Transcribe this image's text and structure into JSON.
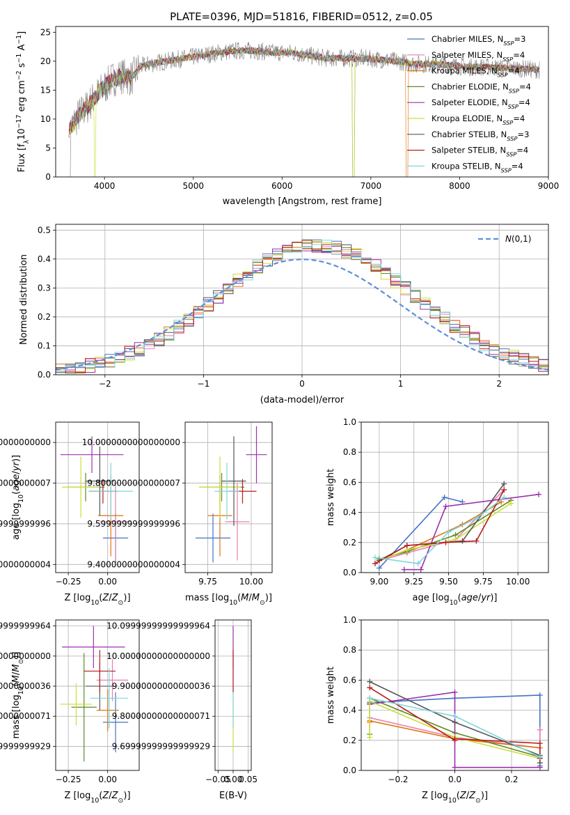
{
  "figure": {
    "title": "PLATE=0396, MJD=51816, FIBERID=0512, z=0.05"
  },
  "legend_entries": [
    {
      "label": "Chabrier MILES, N",
      "sub": "SSP",
      "tail": "=3",
      "color": "#4472c4"
    },
    {
      "label": "Salpeter MILES, N",
      "sub": "SSP",
      "tail": "=4",
      "color": "#e77fae"
    },
    {
      "label": "Kroupa MILES, N",
      "sub": "SSP",
      "tail": "=4",
      "color": "#e0730f"
    },
    {
      "label": "Chabrier ELODIE, N",
      "sub": "SSP",
      "tail": "=4",
      "color": "#5a8a22"
    },
    {
      "label": "Salpeter ELODIE, N",
      "sub": "SSP",
      "tail": "=4",
      "color": "#9c2fae"
    },
    {
      "label": "Kroupa ELODIE, N",
      "sub": "SSP",
      "tail": "=4",
      "color": "#cddc39"
    },
    {
      "label": "Chabrier STELIB, N",
      "sub": "SSP",
      "tail": "=3",
      "color": "#555555"
    },
    {
      "label": "Salpeter STELIB, N",
      "sub": "SSP",
      "tail": "=4",
      "color": "#b71c1c"
    },
    {
      "label": "Kroupa STELIB, N",
      "sub": "SSP",
      "tail": "=4",
      "color": "#7ed6dc"
    }
  ],
  "chart_data": [
    {
      "id": "spectrum",
      "type": "line",
      "title": "PLATE=0396, MJD=51816, FIBERID=0512, z=0.05",
      "xlabel": "wavelength [Angstrom, rest frame]",
      "ylabel": "Flux [f_λ 10^-17 erg cm^-2 s^-1 A^-1]",
      "xlim": [
        3450,
        9000
      ],
      "ylim": [
        0,
        26
      ],
      "xticks": [
        4000,
        5000,
        6000,
        7000,
        8000,
        9000
      ],
      "yticks": [
        0,
        5,
        10,
        15,
        20,
        25
      ],
      "grid": false,
      "legend": "top-right",
      "continuum": {
        "x": [
          3600,
          3700,
          3800,
          3900,
          4000,
          4100,
          4200,
          4300,
          4400,
          4500,
          4700,
          4900,
          5100,
          5300,
          5500,
          5700,
          5900,
          6100,
          6300,
          6500,
          6700,
          6900,
          7100,
          7300,
          7500,
          7700,
          7900,
          8100,
          8300,
          8500,
          8700,
          8900
        ],
        "y": [
          8,
          10.5,
          12,
          14,
          15.5,
          17,
          17.5,
          17,
          19,
          19.5,
          20,
          20.5,
          21,
          21.5,
          21.8,
          21.8,
          21.5,
          21.5,
          21,
          20.5,
          20.5,
          20.5,
          20.3,
          20,
          19.5,
          19.5,
          19.3,
          19,
          19,
          18.8,
          18.7,
          18.5
        ]
      }
    },
    {
      "id": "residuals",
      "type": "line",
      "xlabel": "(data-model)/error",
      "ylabel": "Normed distribution",
      "xlim": [
        -2.5,
        2.5
      ],
      "ylim": [
        0,
        0.52
      ],
      "xticks": [
        -2,
        -1,
        0,
        1,
        2
      ],
      "yticks": [
        0.0,
        0.1,
        0.2,
        0.3,
        0.4,
        0.5
      ],
      "grid": true,
      "legend": "top-right",
      "gaussian_label": "N(0,1)",
      "gaussian_color": "#5b8fd9"
    },
    {
      "id": "age-vs-Z",
      "type": "scatter",
      "xlabel": "Z [log10(Z/Z⊙)]",
      "ylabel": "age [log10(age/yr)]",
      "xlim": [
        -0.33,
        0.2
      ],
      "ylim": [
        9.36,
        10.1
      ],
      "xticks": [
        -0.25,
        0.0
      ],
      "yticks": [
        9.4,
        9.6,
        9.8,
        10.0
      ],
      "grid": true,
      "points": [
        {
          "x": 0.05,
          "y": 9.53,
          "xerr": 0.08,
          "yerr": 0.12,
          "color": "#4472c4"
        },
        {
          "x": 0.05,
          "y": 9.61,
          "xerr": 0.1,
          "yerr": 0.19,
          "color": "#e77fae"
        },
        {
          "x": 0.02,
          "y": 9.64,
          "xerr": 0.08,
          "yerr": 0.2,
          "color": "#e0730f"
        },
        {
          "x": -0.14,
          "y": 9.78,
          "xerr": 0.12,
          "yerr": 0.07,
          "color": "#5a8a22"
        },
        {
          "x": -0.1,
          "y": 9.94,
          "xerr": 0.2,
          "yerr": 0.09,
          "color": "#9c2fae"
        },
        {
          "x": -0.17,
          "y": 9.78,
          "xerr": 0.12,
          "yerr": 0.15,
          "color": "#cddc39"
        },
        {
          "x": -0.05,
          "y": 9.81,
          "xerr": 0.09,
          "yerr": 0.17,
          "color": "#555555"
        },
        {
          "x": -0.03,
          "y": 9.76,
          "xerr": 0.09,
          "yerr": 0.06,
          "color": "#b71c1c"
        },
        {
          "x": 0.02,
          "y": 9.76,
          "xerr": 0.14,
          "yerr": 0.14,
          "color": "#7ed6dc"
        }
      ]
    },
    {
      "id": "age-vs-mass",
      "type": "scatter",
      "xlabel": "mass [log10(M/M⊙)]",
      "ylabel": "",
      "xlim": [
        9.62,
        10.12
      ],
      "ylim": [
        9.36,
        10.1
      ],
      "xticks": [
        9.75,
        10.0
      ],
      "yticks": [
        9.4,
        9.6,
        9.8,
        10.0
      ],
      "grid": true,
      "points": [
        {
          "x": 9.78,
          "y": 9.53,
          "xerr": 0.1,
          "yerr": 0.12,
          "color": "#4472c4"
        },
        {
          "x": 9.92,
          "y": 9.61,
          "xerr": 0.07,
          "yerr": 0.19,
          "color": "#e77fae"
        },
        {
          "x": 9.82,
          "y": 9.64,
          "xerr": 0.07,
          "yerr": 0.2,
          "color": "#e0730f"
        },
        {
          "x": 9.83,
          "y": 9.78,
          "xerr": 0.13,
          "yerr": 0.07,
          "color": "#5a8a22"
        },
        {
          "x": 10.03,
          "y": 9.94,
          "xerr": 0.06,
          "yerr": 0.14,
          "color": "#9c2fae"
        },
        {
          "x": 9.82,
          "y": 9.78,
          "xerr": 0.12,
          "yerr": 0.15,
          "color": "#cddc39"
        },
        {
          "x": 9.9,
          "y": 9.81,
          "xerr": 0.07,
          "yerr": 0.22,
          "color": "#555555"
        },
        {
          "x": 9.95,
          "y": 9.76,
          "xerr": 0.08,
          "yerr": 0.06,
          "color": "#b71c1c"
        },
        {
          "x": 9.86,
          "y": 9.76,
          "xerr": 0.07,
          "yerr": 0.14,
          "color": "#7ed6dc"
        }
      ]
    },
    {
      "id": "weight-vs-age",
      "type": "line",
      "xlabel": "age [log10(age/yr)]",
      "ylabel": "mass weight",
      "xlim": [
        8.87,
        10.22
      ],
      "ylim": [
        0,
        1.0
      ],
      "xticks": [
        9.0,
        9.25,
        9.5,
        9.75,
        10.0
      ],
      "yticks": [
        0.0,
        0.2,
        0.4,
        0.6,
        0.8,
        1.0
      ],
      "grid": true,
      "series": [
        {
          "color": "#4472c4",
          "x": [
            9.0,
            9.47,
            9.6
          ],
          "y": [
            0.03,
            0.5,
            0.47
          ]
        },
        {
          "color": "#e77fae",
          "x": [
            9.0,
            9.2,
            9.55,
            9.9
          ],
          "y": [
            0.08,
            0.13,
            0.22,
            0.55
          ]
        },
        {
          "color": "#e0730f",
          "x": [
            9.0,
            9.2,
            9.6,
            9.88
          ],
          "y": [
            0.08,
            0.15,
            0.32,
            0.47
          ]
        },
        {
          "color": "#5a8a22",
          "x": [
            9.0,
            9.2,
            9.55,
            9.95
          ],
          "y": [
            0.09,
            0.14,
            0.25,
            0.48
          ]
        },
        {
          "color": "#9c2fae",
          "x": [
            9.18,
            9.3,
            9.48,
            10.15
          ],
          "y": [
            0.02,
            0.02,
            0.44,
            0.52
          ]
        },
        {
          "color": "#cddc39",
          "x": [
            9.0,
            9.2,
            9.55,
            9.95
          ],
          "y": [
            0.08,
            0.15,
            0.22,
            0.46
          ]
        },
        {
          "color": "#555555",
          "x": [
            9.0,
            9.2,
            9.6,
            9.9
          ],
          "y": [
            0.08,
            0.18,
            0.21,
            0.59
          ]
        },
        {
          "color": "#b71c1c",
          "x": [
            8.97,
            9.2,
            9.48,
            9.7,
            9.9
          ],
          "y": [
            0.06,
            0.18,
            0.2,
            0.21,
            0.55
          ]
        },
        {
          "color": "#7ed6dc",
          "x": [
            8.97,
            9.28,
            9.5,
            9.7,
            9.9
          ],
          "y": [
            0.1,
            0.06,
            0.27,
            0.36,
            0.5
          ]
        }
      ]
    },
    {
      "id": "mass-vs-Z",
      "type": "scatter",
      "xlabel": "Z [log10(Z/Z⊙)]",
      "ylabel": "mass [log10(M/M⊙)]",
      "xlim": [
        -0.33,
        0.2
      ],
      "ylim": [
        9.62,
        10.12
      ],
      "xticks": [
        -0.25,
        0.0
      ],
      "yticks": [
        9.7,
        9.8,
        9.9,
        10.0,
        10.1
      ],
      "grid": true,
      "points": [
        {
          "x": 0.05,
          "y": 9.78,
          "xerr": 0.08,
          "yerr": 0.1,
          "color": "#4472c4"
        },
        {
          "x": 0.03,
          "y": 9.92,
          "xerr": 0.1,
          "yerr": 0.07,
          "color": "#e77fae"
        },
        {
          "x": 0.0,
          "y": 9.82,
          "xerr": 0.07,
          "yerr": 0.07,
          "color": "#e0730f"
        },
        {
          "x": -0.15,
          "y": 9.83,
          "xerr": 0.08,
          "yerr": 0.18,
          "color": "#5a8a22"
        },
        {
          "x": -0.09,
          "y": 10.03,
          "xerr": 0.2,
          "yerr": 0.07,
          "color": "#9c2fae"
        },
        {
          "x": -0.2,
          "y": 9.84,
          "xerr": 0.1,
          "yerr": 0.07,
          "color": "#cddc39"
        },
        {
          "x": -0.05,
          "y": 9.9,
          "xerr": 0.09,
          "yerr": 0.08,
          "color": "#555555"
        },
        {
          "x": -0.05,
          "y": 9.95,
          "xerr": 0.1,
          "yerr": 0.07,
          "color": "#b71c1c"
        },
        {
          "x": 0.01,
          "y": 9.86,
          "xerr": 0.12,
          "yerr": 0.1,
          "color": "#7ed6dc"
        }
      ]
    },
    {
      "id": "mass-vs-ebv",
      "type": "scatter",
      "xlabel": "E(B-V)",
      "ylabel": "",
      "xlim": [
        -0.06,
        0.06
      ],
      "ylim": [
        9.62,
        10.12
      ],
      "xticks": [
        -0.05,
        0.0,
        0.05
      ],
      "yticks": [
        9.7,
        9.8,
        9.9,
        10.0,
        10.1
      ],
      "grid": true,
      "points": [
        {
          "x": 0.0,
          "y": 9.78,
          "xerr": 0,
          "yerr": 0.1,
          "color": "#cddc39"
        },
        {
          "x": 0.0,
          "y": 9.86,
          "xerr": 0,
          "yerr": 0.1,
          "color": "#7ed6dc"
        },
        {
          "x": 0.0,
          "y": 10.03,
          "xerr": 0,
          "yerr": 0.07,
          "color": "#9c2fae"
        },
        {
          "x": 0.0,
          "y": 9.95,
          "xerr": 0,
          "yerr": 0.07,
          "color": "#b71c1c"
        }
      ]
    },
    {
      "id": "weight-vs-Z",
      "type": "line",
      "xlabel": "Z [log10(Z/Z⊙)]",
      "ylabel": "mass weight",
      "xlim": [
        -0.33,
        0.33
      ],
      "ylim": [
        0,
        1.0
      ],
      "xticks": [
        -0.2,
        0.0,
        0.2
      ],
      "yticks": [
        0.0,
        0.2,
        0.4,
        0.6,
        0.8,
        1.0
      ],
      "grid": true,
      "series": [
        {
          "color": "#4472c4",
          "x": [
            -0.3,
            0.0,
            0.3,
            0.3
          ],
          "y": [
            0.45,
            0.48,
            0.5,
            0.03
          ]
        },
        {
          "color": "#e77fae",
          "x": [
            -0.3,
            0.0,
            0.3,
            0.3
          ],
          "y": [
            0.35,
            0.22,
            0.15,
            0.27
          ]
        },
        {
          "color": "#e0730f",
          "x": [
            -0.3,
            -0.3,
            0.0,
            0.3
          ],
          "y": [
            0.32,
            0.33,
            0.21,
            0.15
          ]
        },
        {
          "color": "#5a8a22",
          "x": [
            -0.3,
            -0.3,
            0.0,
            0.3
          ],
          "y": [
            0.24,
            0.48,
            0.25,
            0.09
          ]
        },
        {
          "color": "#9c2fae",
          "x": [
            -0.3,
            0.0,
            0.0,
            0.3
          ],
          "y": [
            0.44,
            0.52,
            0.02,
            0.02
          ]
        },
        {
          "color": "#cddc39",
          "x": [
            -0.3,
            -0.3,
            0.0,
            0.3
          ],
          "y": [
            0.22,
            0.46,
            0.22,
            0.08
          ]
        },
        {
          "color": "#555555",
          "x": [
            -0.3,
            0.0,
            0.3,
            0.3
          ],
          "y": [
            0.59,
            0.32,
            0.1,
            0.05
          ]
        },
        {
          "color": "#b71c1c",
          "x": [
            -0.3,
            0.0,
            0.0,
            0.3,
            0.3
          ],
          "y": [
            0.55,
            0.2,
            0.21,
            0.18,
            0.08
          ]
        },
        {
          "color": "#7ed6dc",
          "x": [
            -0.3,
            0.0,
            0.3
          ],
          "y": [
            0.48,
            0.36,
            0.09
          ]
        }
      ]
    }
  ]
}
